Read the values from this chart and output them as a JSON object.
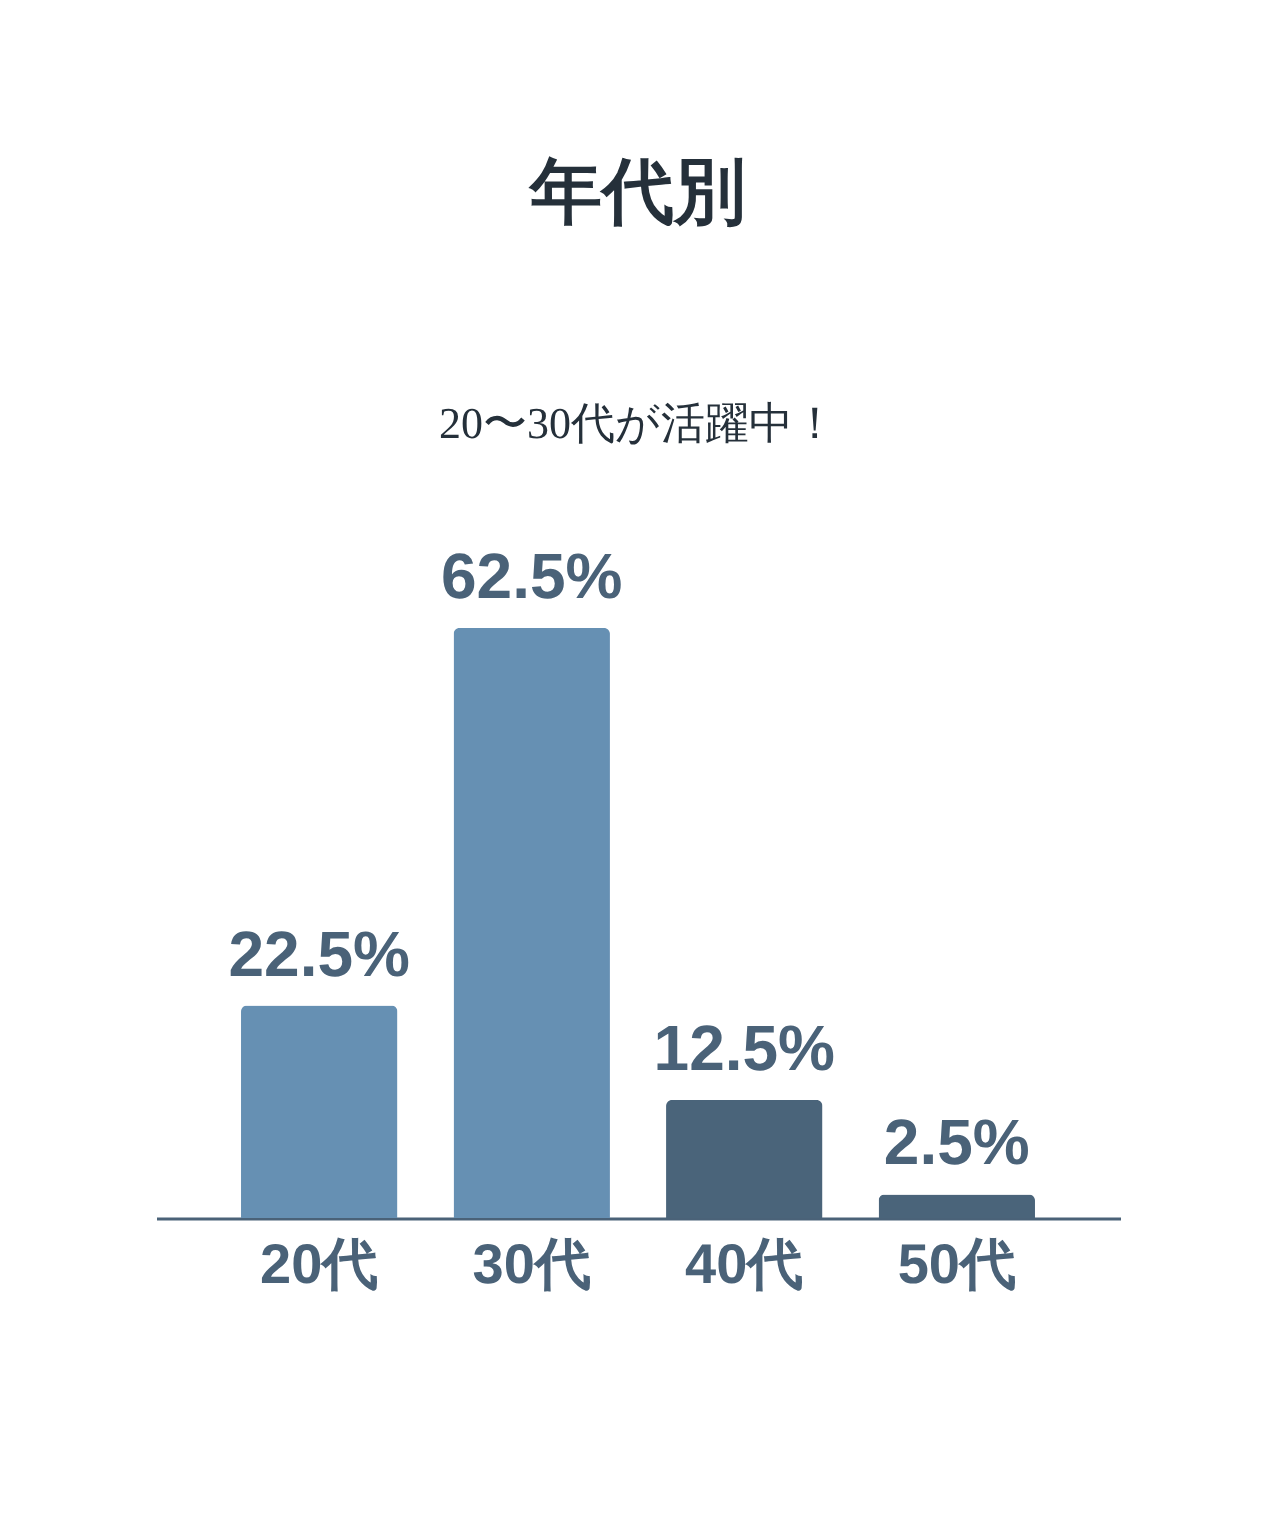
{
  "chart_data": {
    "type": "bar",
    "title": "年代別",
    "subtitle": "20〜30代が活躍中！",
    "categories": [
      "20代",
      "30代",
      "40代",
      "50代"
    ],
    "values": [
      22.5,
      62.5,
      12.5,
      2.5
    ],
    "colors": [
      "#6690b3",
      "#6690b3",
      "#4a647a",
      "#4a647a"
    ],
    "value_labels": [
      "22.5%",
      "62.5%",
      "12.5%",
      "2.5%"
    ]
  }
}
